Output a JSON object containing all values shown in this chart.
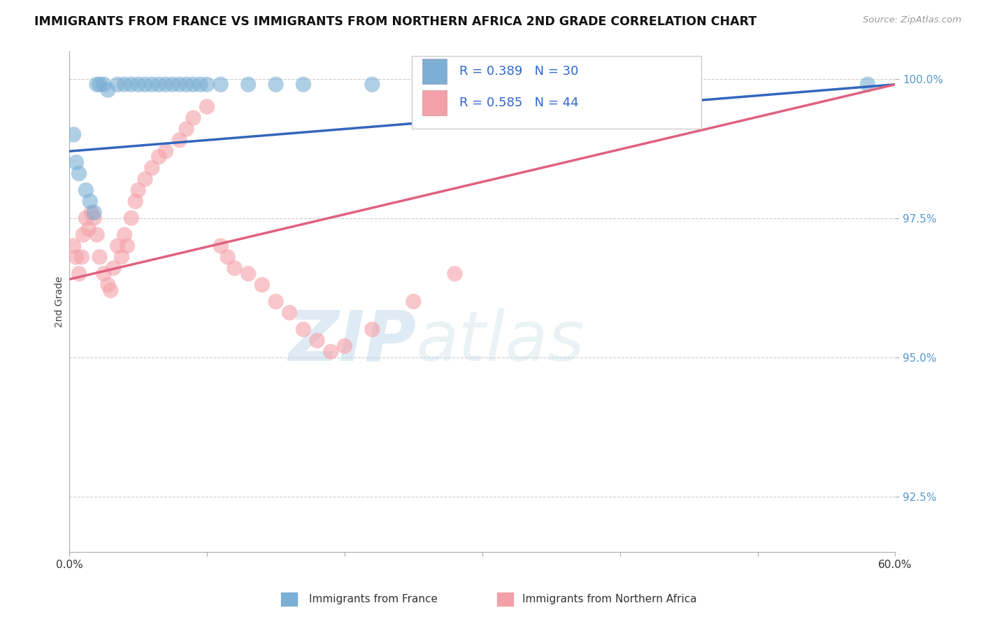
{
  "title": "IMMIGRANTS FROM FRANCE VS IMMIGRANTS FROM NORTHERN AFRICA 2ND GRADE CORRELATION CHART",
  "source_text": "Source: ZipAtlas.com",
  "ylabel": "2nd Grade",
  "xlim": [
    0.0,
    0.6
  ],
  "ylim": [
    0.915,
    1.005
  ],
  "xticks": [
    0.0,
    0.1,
    0.2,
    0.3,
    0.4,
    0.5,
    0.6
  ],
  "xticklabels": [
    "0.0%",
    "",
    "",
    "",
    "",
    "",
    "60.0%"
  ],
  "yticks": [
    0.925,
    0.95,
    0.975,
    1.0
  ],
  "yticklabels": [
    "92.5%",
    "95.0%",
    "97.5%",
    "100.0%"
  ],
  "legend1_label": "R = 0.389   N = 30",
  "legend2_label": "R = 0.585   N = 44",
  "legend_bottom_label1": "Immigrants from France",
  "legend_bottom_label2": "Immigrants from Northern Africa",
  "color_france": "#7BAFD4",
  "color_africa": "#F4A0A8",
  "color_trendline_france": "#3366BB",
  "color_trendline_africa": "#E06080",
  "watermark_zip": "ZIP",
  "watermark_atlas": "atlas",
  "france_x": [
    0.003,
    0.005,
    0.007,
    0.012,
    0.015,
    0.018,
    0.02,
    0.022,
    0.025,
    0.028,
    0.035,
    0.04,
    0.045,
    0.05,
    0.055,
    0.06,
    0.065,
    0.07,
    0.075,
    0.08,
    0.085,
    0.09,
    0.095,
    0.1,
    0.11,
    0.13,
    0.15,
    0.17,
    0.22,
    0.58
  ],
  "france_y": [
    0.99,
    0.985,
    0.983,
    0.98,
    0.978,
    0.976,
    0.999,
    0.999,
    0.999,
    0.998,
    0.999,
    0.999,
    0.999,
    0.999,
    0.999,
    0.999,
    0.999,
    0.999,
    0.999,
    0.999,
    0.999,
    0.999,
    0.999,
    0.999,
    0.999,
    0.999,
    0.999,
    0.999,
    0.999,
    0.999
  ],
  "africa_x": [
    0.003,
    0.005,
    0.007,
    0.009,
    0.01,
    0.012,
    0.014,
    0.016,
    0.018,
    0.02,
    0.022,
    0.025,
    0.028,
    0.03,
    0.032,
    0.035,
    0.038,
    0.04,
    0.042,
    0.045,
    0.048,
    0.05,
    0.055,
    0.06,
    0.065,
    0.07,
    0.08,
    0.085,
    0.09,
    0.1,
    0.11,
    0.115,
    0.12,
    0.13,
    0.14,
    0.15,
    0.16,
    0.17,
    0.18,
    0.19,
    0.2,
    0.22,
    0.25,
    0.28
  ],
  "africa_y": [
    0.97,
    0.968,
    0.965,
    0.968,
    0.972,
    0.975,
    0.973,
    0.976,
    0.975,
    0.972,
    0.968,
    0.965,
    0.963,
    0.962,
    0.966,
    0.97,
    0.968,
    0.972,
    0.97,
    0.975,
    0.978,
    0.98,
    0.982,
    0.984,
    0.986,
    0.987,
    0.989,
    0.991,
    0.993,
    0.995,
    0.97,
    0.968,
    0.966,
    0.965,
    0.963,
    0.96,
    0.958,
    0.955,
    0.953,
    0.951,
    0.952,
    0.955,
    0.96,
    0.965
  ],
  "trendline_france_y0": 0.987,
  "trendline_france_y1": 0.999,
  "trendline_africa_y0": 0.964,
  "trendline_africa_y1": 0.999
}
